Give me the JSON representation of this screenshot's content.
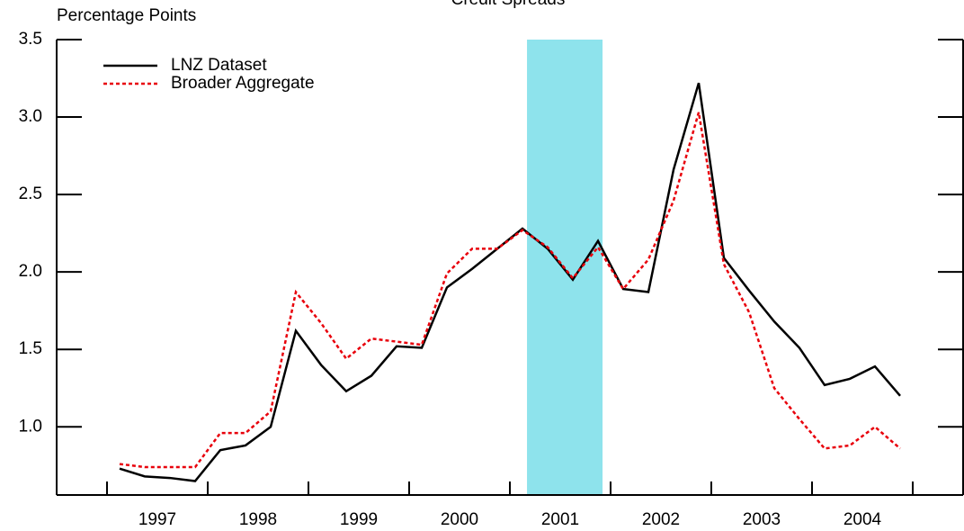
{
  "chart_data": {
    "type": "line",
    "title": "Credit Spreads",
    "y_label": "Percentage Points",
    "x": [
      1997.125,
      1997.375,
      1997.625,
      1997.875,
      1998.125,
      1998.375,
      1998.625,
      1998.875,
      1999.125,
      1999.375,
      1999.625,
      1999.875,
      2000.125,
      2000.375,
      2000.625,
      2000.875,
      2001.125,
      2001.375,
      2001.625,
      2001.875,
      2002.125,
      2002.375,
      2002.625,
      2002.875,
      2003.125,
      2003.375,
      2003.625,
      2003.875,
      2004.125,
      2004.375,
      2004.625,
      2004.875
    ],
    "series": [
      {
        "name": "LNZ Dataset",
        "color": "#000000",
        "dash": "solid",
        "values": [
          0.73,
          0.68,
          0.67,
          0.65,
          0.85,
          0.88,
          1.0,
          1.62,
          1.4,
          1.23,
          1.33,
          1.52,
          1.51,
          1.9,
          2.02,
          2.15,
          2.28,
          2.15,
          1.95,
          2.2,
          1.89,
          1.87,
          2.66,
          3.22,
          2.09,
          1.88,
          1.68,
          1.51,
          1.27,
          1.31,
          1.39,
          1.2
        ]
      },
      {
        "name": "Broader Aggregate",
        "color": "#e8000b",
        "dash": "dotted",
        "values": [
          0.76,
          0.74,
          0.74,
          0.74,
          0.96,
          0.96,
          1.1,
          1.87,
          1.67,
          1.44,
          1.57,
          1.55,
          1.53,
          1.99,
          2.15,
          2.15,
          2.27,
          2.16,
          1.96,
          2.16,
          1.89,
          2.08,
          2.46,
          3.03,
          2.05,
          1.74,
          1.25,
          1.05,
          0.86,
          0.88,
          1.0,
          0.86
        ]
      }
    ],
    "xlim": [
      1996.5,
      2005.5
    ],
    "xticks": [
      {
        "value": 1997.5,
        "label": "1997"
      },
      {
        "value": 1998.5,
        "label": "1998"
      },
      {
        "value": 1999.5,
        "label": "1999"
      },
      {
        "value": 2000.5,
        "label": "2000"
      },
      {
        "value": 2001.5,
        "label": "2001"
      },
      {
        "value": 2002.5,
        "label": "2002"
      },
      {
        "value": 2003.5,
        "label": "2003"
      },
      {
        "value": 2004.5,
        "label": "2004"
      }
    ],
    "xtick_marks": [
      1997,
      1998,
      1999,
      2000,
      2001,
      2002,
      2003,
      2004,
      2005
    ],
    "ylim": [
      0.56,
      3.5
    ],
    "yticks": [
      {
        "value": 1,
        "label": "1.0"
      },
      {
        "value": 1.5,
        "label": "1.5"
      },
      {
        "value": 2,
        "label": "2.0"
      },
      {
        "value": 2.5,
        "label": "2.5"
      },
      {
        "value": 3,
        "label": "3.0"
      },
      {
        "value": 3.5,
        "label": "3.5"
      }
    ],
    "shade": {
      "xlim": [
        2001.17,
        2001.92
      ],
      "color": "#8ee3ec"
    },
    "legend": "upper left",
    "grid": false
  }
}
